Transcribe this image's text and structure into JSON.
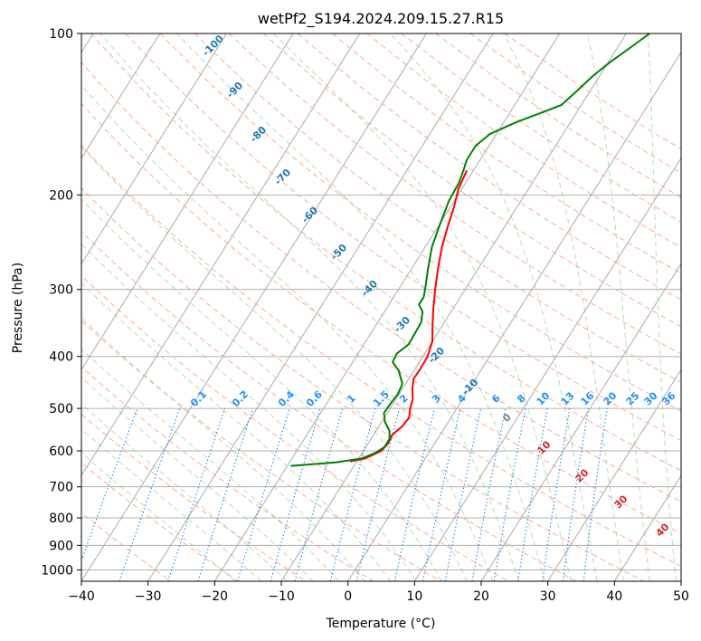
{
  "chart_data": {
    "type": "line",
    "title": "wetPf2_S194.2024.209.15.27.R15",
    "xlabel": "Temperature (°C)",
    "ylabel": "Pressure (hPa)",
    "xlim": [
      -40,
      50
    ],
    "ylim": [
      1050,
      100
    ],
    "y_scale": "log",
    "grid": true,
    "x_ticks": [
      -40,
      -30,
      -20,
      -10,
      0,
      10,
      20,
      30,
      40,
      50
    ],
    "x_tick_labels": [
      "−40",
      "−30",
      "−20",
      "−10",
      "0",
      "10",
      "20",
      "30",
      "40",
      "50"
    ],
    "y_ticks": [
      100,
      200,
      300,
      400,
      500,
      600,
      700,
      800,
      900,
      1000
    ],
    "y_tick_labels": [
      "100",
      "200",
      "300",
      "400",
      "500",
      "600",
      "700",
      "800",
      "900",
      "1000"
    ],
    "series": [
      {
        "color": "#ff0000",
        "points": [
          [
            -21,
            180
          ],
          [
            -20.5,
            195
          ],
          [
            -19.5,
            210
          ],
          [
            -18.5,
            230
          ],
          [
            -17.5,
            250
          ],
          [
            -16,
            275
          ],
          [
            -14.5,
            300
          ],
          [
            -13,
            325
          ],
          [
            -11.5,
            350
          ],
          [
            -10,
            375
          ],
          [
            -9.3,
            400
          ],
          [
            -9.2,
            425
          ],
          [
            -9.3,
            440
          ],
          [
            -8.5,
            460
          ],
          [
            -7.5,
            480
          ],
          [
            -7,
            500
          ],
          [
            -6.3,
            520
          ],
          [
            -6.5,
            540
          ],
          [
            -7.2,
            560
          ],
          [
            -7,
            580
          ],
          [
            -7.3,
            600
          ],
          [
            -9,
            620
          ],
          [
            -11,
            628
          ]
        ]
      },
      {
        "color": "#008000",
        "points": [
          [
            -6.5,
            100
          ],
          [
            -8,
            106
          ],
          [
            -9.7,
            113
          ],
          [
            -11,
            120
          ],
          [
            -12,
            128
          ],
          [
            -13,
            136
          ],
          [
            -15,
            140
          ],
          [
            -18,
            146
          ],
          [
            -21,
            154
          ],
          [
            -22,
            162
          ],
          [
            -22,
            172
          ],
          [
            -21.5,
            180
          ],
          [
            -21,
            190
          ],
          [
            -20.8,
            205
          ],
          [
            -20,
            225
          ],
          [
            -19,
            250
          ],
          [
            -17.5,
            275
          ],
          [
            -16,
            300
          ],
          [
            -15.5,
            310
          ],
          [
            -15.5,
            320
          ],
          [
            -14.3,
            330
          ],
          [
            -13.5,
            345
          ],
          [
            -13.4,
            360
          ],
          [
            -13.3,
            380
          ],
          [
            -14.2,
            395
          ],
          [
            -14,
            410
          ],
          [
            -12.3,
            425
          ],
          [
            -10.5,
            450
          ],
          [
            -10.2,
            470
          ],
          [
            -10.4,
            490
          ],
          [
            -10.5,
            510
          ],
          [
            -9.5,
            530
          ],
          [
            -8,
            550
          ],
          [
            -7.2,
            570
          ],
          [
            -7.2,
            590
          ],
          [
            -8,
            605
          ],
          [
            -9.5,
            620
          ],
          [
            -13,
            630
          ],
          [
            -19.5,
            640
          ]
        ]
      }
    ],
    "reference_lines": {
      "isotherms": "gray solid",
      "dry_adiabats": "orange dashed",
      "moist_adiabats": "green dashed",
      "mixing_ratio": "blue dotted"
    },
    "dry_adiabat_labels": [
      "-100",
      "-90",
      "-80",
      "-70",
      "-60",
      "-50",
      "-40",
      "-30",
      "-20",
      "-10"
    ],
    "moist_adiabat_labels": [
      "0",
      "10",
      "20",
      "30",
      "40"
    ],
    "mixing_ratio_labels": [
      "0.1",
      "0.2",
      "0.4",
      "0.6",
      "1",
      "1.5",
      "2",
      "3",
      "4",
      "6",
      "8",
      "10",
      "13",
      "16",
      "20",
      "25",
      "30",
      "36"
    ],
    "colors": {
      "temperature": "#ff0000",
      "dewpoint": "#008000",
      "dry_label": "#1f77b4",
      "mixing_label": "#1e90ff",
      "moist_label": "#d62728"
    }
  }
}
